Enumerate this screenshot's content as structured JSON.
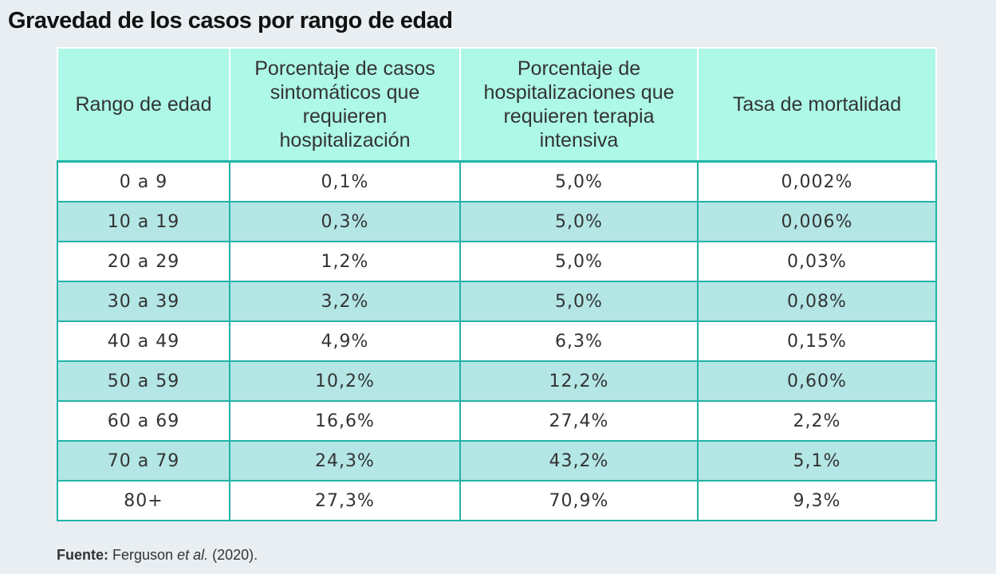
{
  "title": "Gravedad de los casos por rango de edad",
  "colors": {
    "header_bg": "#adf8e6",
    "stripe_bg": "#b3e6e5",
    "border": "#22b3a8",
    "page_bg": "#e8eef1"
  },
  "chart_data": {
    "type": "table",
    "columns": [
      "Rango de edad",
      "Porcentaje de casos sintomáticos que requieren hospitalización",
      "Porcentaje de hospitalizaciones que requieren terapia intensiva",
      "Tasa de mortalidad"
    ],
    "rows": [
      [
        "0 a 9",
        "0,1%",
        "5,0%",
        "0,002%"
      ],
      [
        "10 a 19",
        "0,3%",
        "5,0%",
        "0,006%"
      ],
      [
        "20 a 29",
        "1,2%",
        "5,0%",
        "0,03%"
      ],
      [
        "30 a 39",
        "3,2%",
        "5,0%",
        "0,08%"
      ],
      [
        "40 a 49",
        "4,9%",
        "6,3%",
        "0,15%"
      ],
      [
        "50 a 59",
        "10,2%",
        "12,2%",
        "0,60%"
      ],
      [
        "60 a 69",
        "16,6%",
        "27,4%",
        "2,2%"
      ],
      [
        "70 a 79",
        "24,3%",
        "43,2%",
        "5,1%"
      ],
      [
        "80+",
        "27,3%",
        "70,9%",
        "9,3%"
      ]
    ]
  },
  "source": {
    "label": "Fuente:",
    "author": "Ferguson",
    "etal": "et al.",
    "year": "(2020)."
  }
}
